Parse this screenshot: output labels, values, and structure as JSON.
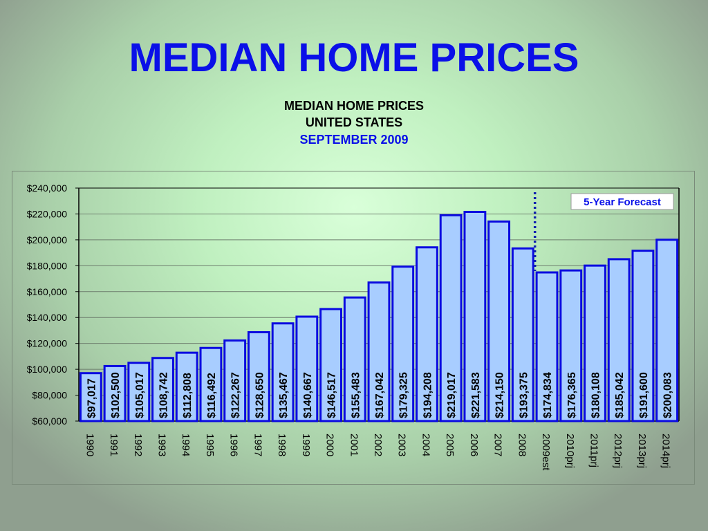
{
  "slide": {
    "title": "MEDIAN HOME PRICES"
  },
  "chart_data": {
    "type": "bar",
    "title": "MEDIAN HOME PRICES",
    "subtitle_lines": [
      "UNITED STATES",
      "SEPTEMBER 2009"
    ],
    "categories": [
      "1990",
      "1991",
      "1992",
      "1993",
      "1994",
      "1995",
      "1996",
      "1997",
      "1998",
      "1999",
      "2000",
      "2001",
      "2002",
      "2003",
      "2004",
      "2005",
      "2006",
      "2007",
      "2008",
      "2009est",
      "2010prj",
      "2011prj",
      "2012prj",
      "2013prj",
      "2014prj"
    ],
    "values": [
      97017,
      102500,
      105017,
      108742,
      112808,
      116492,
      122267,
      128650,
      135467,
      140667,
      146517,
      155483,
      167042,
      179325,
      194208,
      219017,
      221583,
      214150,
      193375,
      174834,
      176365,
      180108,
      185042,
      191600,
      200083
    ],
    "data_labels": [
      "$97,017",
      "$102,500",
      "$105,017",
      "$108,742",
      "$112,808",
      "$116,492",
      "$122,267",
      "$128,650",
      "$135,467",
      "$140,667",
      "$146,517",
      "$155,483",
      "$167,042",
      "$179,325",
      "$194,208",
      "$219,017",
      "$221,583",
      "$214,150",
      "$193,375",
      "$174,834",
      "$176,365",
      "$180,108",
      "$185,042",
      "$191,600",
      "$200,083"
    ],
    "ylim": [
      60000,
      240000
    ],
    "y_ticks": [
      60000,
      80000,
      100000,
      120000,
      140000,
      160000,
      180000,
      200000,
      220000,
      240000
    ],
    "y_tick_labels": [
      "$60,000",
      "$80,000",
      "$100,000",
      "$120,000",
      "$140,000",
      "$160,000",
      "$180,000",
      "$200,000",
      "$220,000",
      "$240,000"
    ],
    "grid": true,
    "annotation": "5-Year Forecast",
    "forecast_divider_between": [
      "2008",
      "2009est"
    ],
    "colors": {
      "bar_fill": "#a8cdff",
      "bar_stroke": "#0a0ae0",
      "divider": "#1020b0",
      "title": "#0a10e8"
    }
  }
}
